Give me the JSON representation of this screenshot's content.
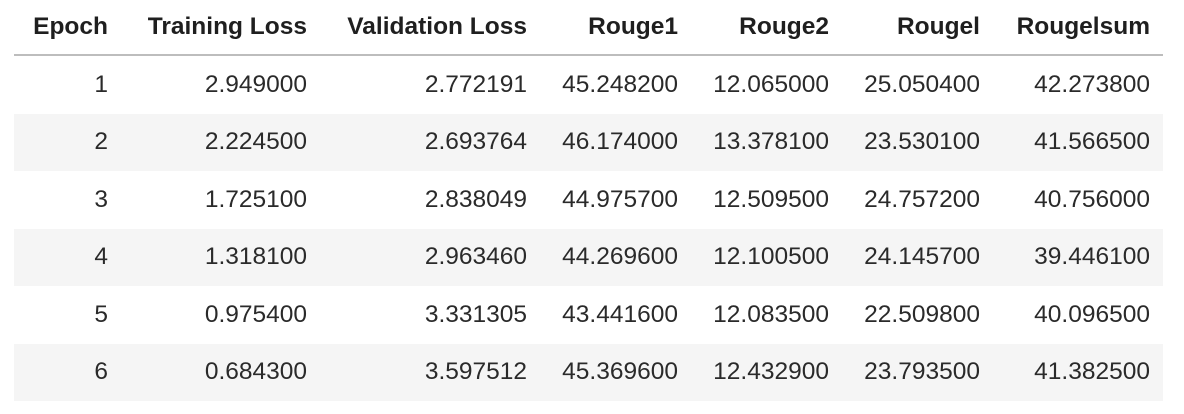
{
  "table": {
    "columns": [
      "Epoch",
      "Training Loss",
      "Validation Loss",
      "Rouge1",
      "Rouge2",
      "Rougel",
      "Rougelsum"
    ],
    "rows": [
      [
        "1",
        "2.949000",
        "2.772191",
        "45.248200",
        "12.065000",
        "25.050400",
        "42.273800"
      ],
      [
        "2",
        "2.224500",
        "2.693764",
        "46.174000",
        "13.378100",
        "23.530100",
        "41.566500"
      ],
      [
        "3",
        "1.725100",
        "2.838049",
        "44.975700",
        "12.509500",
        "24.757200",
        "40.756000"
      ],
      [
        "4",
        "1.318100",
        "2.963460",
        "44.269600",
        "12.100500",
        "24.145700",
        "39.446100"
      ],
      [
        "5",
        "0.975400",
        "3.331305",
        "43.441600",
        "12.083500",
        "22.509800",
        "40.096500"
      ],
      [
        "6",
        "0.684300",
        "3.597512",
        "45.369600",
        "12.432900",
        "23.793500",
        "41.382500"
      ]
    ]
  }
}
